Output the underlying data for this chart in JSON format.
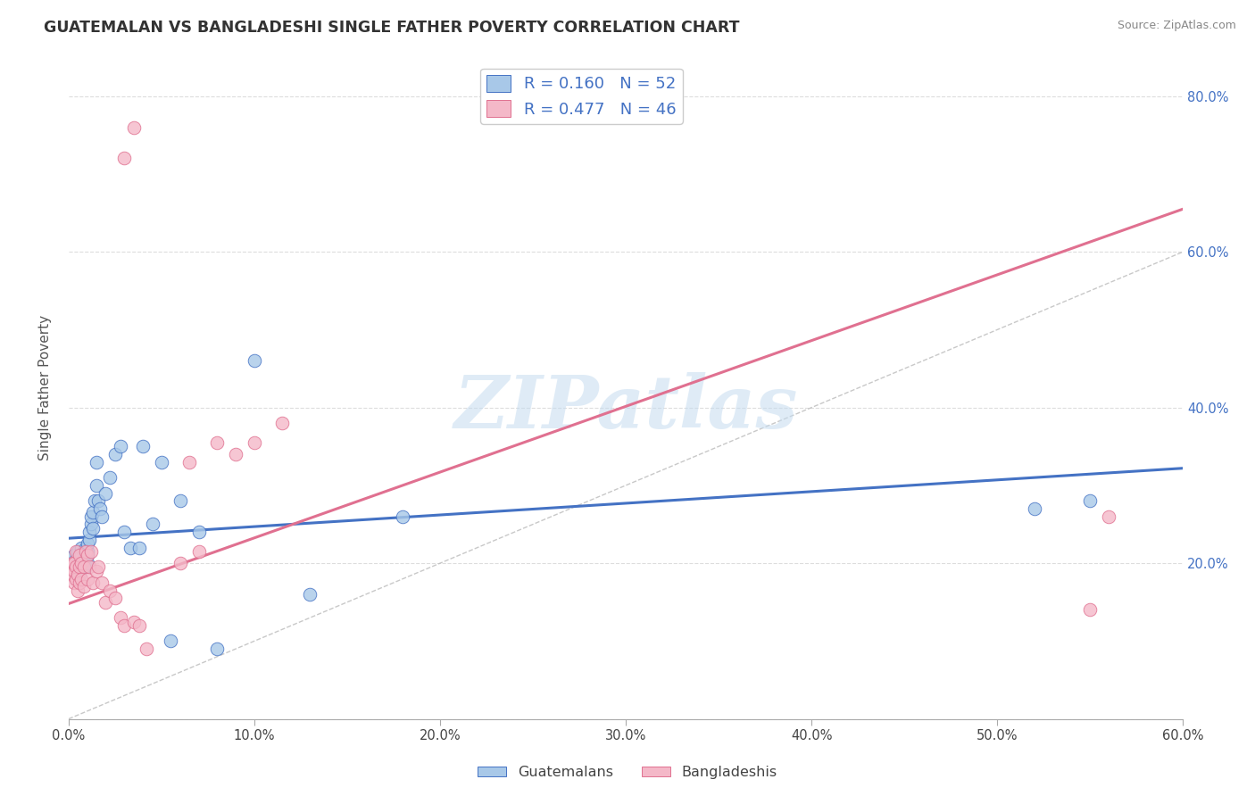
{
  "title": "GUATEMALAN VS BANGLADESHI SINGLE FATHER POVERTY CORRELATION CHART",
  "source": "Source: ZipAtlas.com",
  "ylabel": "Single Father Poverty",
  "xlim": [
    0.0,
    0.6
  ],
  "ylim": [
    0.0,
    0.85
  ],
  "x_tick_positions": [
    0.0,
    0.1,
    0.2,
    0.3,
    0.4,
    0.5,
    0.6
  ],
  "x_tick_labels": [
    "0.0%",
    "10.0%",
    "20.0%",
    "30.0%",
    "40.0%",
    "50.0%",
    "60.0%"
  ],
  "y_tick_positions": [
    0.0,
    0.2,
    0.4,
    0.6,
    0.8
  ],
  "y_tick_labels_right": [
    "",
    "20.0%",
    "40.0%",
    "60.0%",
    "80.0%"
  ],
  "color_blue_fill": "#A8C8E8",
  "color_blue_edge": "#4472C4",
  "color_pink_fill": "#F4B8C8",
  "color_pink_edge": "#E07090",
  "color_line_blue": "#4472C4",
  "color_line_pink": "#E07090",
  "color_diag": "#BBBBBB",
  "watermark": "ZIPatlas",
  "blue_trend": [
    0.0,
    0.232,
    0.6,
    0.322
  ],
  "pink_trend": [
    0.0,
    0.148,
    0.6,
    0.655
  ],
  "guatemalan_x": [
    0.002,
    0.003,
    0.004,
    0.004,
    0.005,
    0.005,
    0.005,
    0.006,
    0.006,
    0.007,
    0.007,
    0.007,
    0.008,
    0.008,
    0.008,
    0.009,
    0.009,
    0.01,
    0.01,
    0.01,
    0.01,
    0.011,
    0.011,
    0.012,
    0.012,
    0.013,
    0.013,
    0.014,
    0.015,
    0.015,
    0.016,
    0.017,
    0.018,
    0.02,
    0.022,
    0.025,
    0.028,
    0.03,
    0.033,
    0.038,
    0.04,
    0.045,
    0.05,
    0.055,
    0.06,
    0.07,
    0.08,
    0.1,
    0.13,
    0.18,
    0.52,
    0.55
  ],
  "guatemalan_y": [
    0.2,
    0.21,
    0.195,
    0.205,
    0.19,
    0.2,
    0.215,
    0.185,
    0.2,
    0.195,
    0.21,
    0.22,
    0.2,
    0.215,
    0.205,
    0.195,
    0.22,
    0.2,
    0.21,
    0.215,
    0.225,
    0.23,
    0.24,
    0.25,
    0.26,
    0.245,
    0.265,
    0.28,
    0.3,
    0.33,
    0.28,
    0.27,
    0.26,
    0.29,
    0.31,
    0.34,
    0.35,
    0.24,
    0.22,
    0.22,
    0.35,
    0.25,
    0.33,
    0.1,
    0.28,
    0.24,
    0.09,
    0.46,
    0.16,
    0.26,
    0.27,
    0.28
  ],
  "bangladeshi_x": [
    0.001,
    0.002,
    0.002,
    0.003,
    0.003,
    0.003,
    0.004,
    0.004,
    0.004,
    0.005,
    0.005,
    0.006,
    0.006,
    0.006,
    0.007,
    0.007,
    0.008,
    0.008,
    0.009,
    0.01,
    0.01,
    0.011,
    0.012,
    0.013,
    0.015,
    0.016,
    0.018,
    0.02,
    0.022,
    0.025,
    0.028,
    0.03,
    0.035,
    0.038,
    0.042,
    0.06,
    0.065,
    0.07,
    0.08,
    0.09,
    0.1,
    0.115,
    0.03,
    0.035,
    0.55,
    0.56
  ],
  "bangladeshi_y": [
    0.195,
    0.185,
    0.2,
    0.175,
    0.19,
    0.2,
    0.18,
    0.195,
    0.215,
    0.165,
    0.185,
    0.175,
    0.195,
    0.21,
    0.18,
    0.2,
    0.17,
    0.195,
    0.215,
    0.18,
    0.21,
    0.195,
    0.215,
    0.175,
    0.19,
    0.195,
    0.175,
    0.15,
    0.165,
    0.155,
    0.13,
    0.12,
    0.125,
    0.12,
    0.09,
    0.2,
    0.33,
    0.215,
    0.355,
    0.34,
    0.355,
    0.38,
    0.72,
    0.76,
    0.14,
    0.26
  ]
}
